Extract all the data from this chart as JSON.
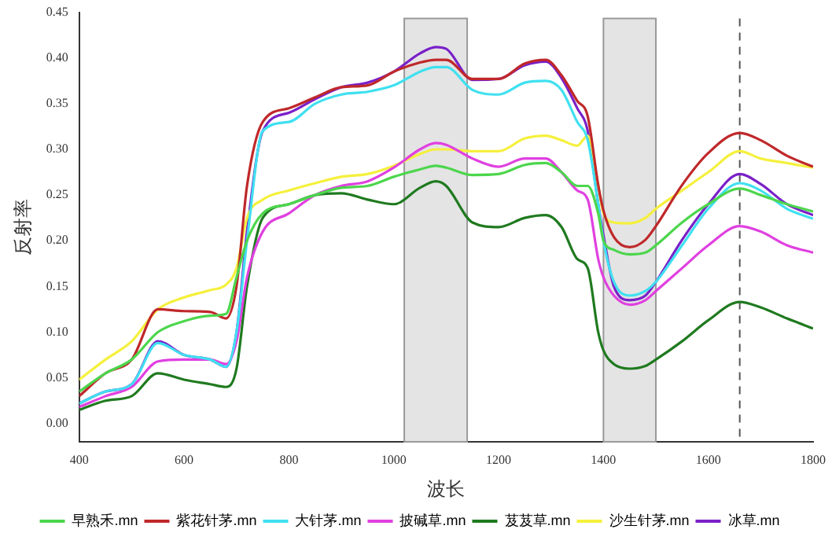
{
  "chart_data": {
    "type": "line",
    "xlabel": "波长",
    "ylabel": "反射率",
    "x": [
      400,
      450,
      500,
      550,
      600,
      650,
      680,
      700,
      720,
      750,
      800,
      850,
      900,
      950,
      1000,
      1050,
      1080,
      1100,
      1150,
      1200,
      1250,
      1290,
      1320,
      1350,
      1370,
      1390,
      1400,
      1420,
      1450,
      1480,
      1500,
      1550,
      1600,
      1660,
      1700,
      1750,
      1800
    ],
    "series": [
      {
        "name": "早熟禾.mn",
        "color": "#4cd64c",
        "values": [
          0.035,
          0.055,
          0.07,
          0.1,
          0.112,
          0.118,
          0.12,
          0.16,
          0.2,
          0.23,
          0.24,
          0.25,
          0.258,
          0.26,
          0.27,
          0.278,
          0.282,
          0.28,
          0.272,
          0.273,
          0.283,
          0.285,
          0.275,
          0.26,
          0.26,
          0.23,
          0.2,
          0.19,
          0.185,
          0.187,
          0.195,
          0.22,
          0.24,
          0.257,
          0.25,
          0.24,
          0.232
        ]
      },
      {
        "name": "紫花针茅.mn",
        "color": "#c0282a",
        "values": [
          0.03,
          0.055,
          0.07,
          0.125,
          0.123,
          0.122,
          0.115,
          0.15,
          0.26,
          0.33,
          0.345,
          0.357,
          0.368,
          0.37,
          0.385,
          0.395,
          0.398,
          0.398,
          0.377,
          0.377,
          0.394,
          0.398,
          0.381,
          0.353,
          0.336,
          0.261,
          0.233,
          0.204,
          0.193,
          0.201,
          0.216,
          0.261,
          0.296,
          0.318,
          0.31,
          0.293,
          0.281
        ]
      },
      {
        "name": "大针茅.mn",
        "color": "#40e0f0",
        "values": [
          0.022,
          0.035,
          0.043,
          0.088,
          0.075,
          0.07,
          0.062,
          0.1,
          0.2,
          0.32,
          0.33,
          0.35,
          0.36,
          0.363,
          0.37,
          0.385,
          0.39,
          0.39,
          0.365,
          0.36,
          0.373,
          0.375,
          0.365,
          0.33,
          0.31,
          0.24,
          0.2,
          0.155,
          0.14,
          0.145,
          0.155,
          0.195,
          0.235,
          0.263,
          0.255,
          0.235,
          0.224
        ]
      },
      {
        "name": "披碱草.mn",
        "color": "#e040e0",
        "values": [
          0.018,
          0.03,
          0.04,
          0.068,
          0.07,
          0.07,
          0.065,
          0.09,
          0.16,
          0.21,
          0.23,
          0.25,
          0.26,
          0.265,
          0.28,
          0.3,
          0.307,
          0.305,
          0.29,
          0.281,
          0.29,
          0.29,
          0.275,
          0.255,
          0.245,
          0.18,
          0.16,
          0.14,
          0.13,
          0.135,
          0.145,
          0.17,
          0.195,
          0.216,
          0.21,
          0.195,
          0.187
        ]
      },
      {
        "name": "芨芨草.mn",
        "color": "#1f7a1f",
        "values": [
          0.015,
          0.025,
          0.03,
          0.055,
          0.048,
          0.043,
          0.04,
          0.06,
          0.15,
          0.225,
          0.24,
          0.25,
          0.252,
          0.245,
          0.24,
          0.258,
          0.265,
          0.26,
          0.22,
          0.215,
          0.225,
          0.228,
          0.215,
          0.18,
          0.17,
          0.1,
          0.08,
          0.065,
          0.06,
          0.063,
          0.07,
          0.09,
          0.113,
          0.133,
          0.127,
          0.115,
          0.104
        ]
      },
      {
        "name": "沙生针茅.mn",
        "color": "#f5f03c",
        "values": [
          0.048,
          0.07,
          0.09,
          0.125,
          0.138,
          0.146,
          0.152,
          0.17,
          0.225,
          0.245,
          0.255,
          0.263,
          0.27,
          0.273,
          0.282,
          0.295,
          0.3,
          0.3,
          0.298,
          0.298,
          0.312,
          0.315,
          0.31,
          0.304,
          0.315,
          0.26,
          0.23,
          0.22,
          0.219,
          0.225,
          0.235,
          0.255,
          0.275,
          0.298,
          0.29,
          0.285,
          0.28
        ]
      },
      {
        "name": "冰草.mn",
        "color": "#7a20c8",
        "values": [
          0.022,
          0.035,
          0.043,
          0.09,
          0.075,
          0.07,
          0.062,
          0.1,
          0.21,
          0.32,
          0.34,
          0.355,
          0.368,
          0.373,
          0.385,
          0.405,
          0.412,
          0.41,
          0.376,
          0.377,
          0.392,
          0.396,
          0.378,
          0.345,
          0.32,
          0.24,
          0.206,
          0.15,
          0.135,
          0.14,
          0.155,
          0.201,
          0.24,
          0.273,
          0.262,
          0.24,
          0.228
        ]
      }
    ],
    "xlim": [
      400,
      1800
    ],
    "xticks": [
      400,
      600,
      800,
      1000,
      1200,
      1400,
      1600,
      1800
    ],
    "ylim": [
      -0.02,
      0.45
    ],
    "yticks": [
      {
        "value": 0,
        "label": "0.00"
      },
      {
        "value": 0.05,
        "label": "0.05"
      },
      {
        "value": 0.1,
        "label": "0.10"
      },
      {
        "value": 0.15,
        "label": "0.15"
      },
      {
        "value": 0.2,
        "label": "0.20"
      },
      {
        "value": 0.25,
        "label": "0.25"
      },
      {
        "value": 0.3,
        "label": "0.30"
      },
      {
        "value": 0.35,
        "label": "0.35"
      },
      {
        "value": 0.4,
        "label": "0.40"
      },
      {
        "value": 0.45,
        "label": "0.45"
      }
    ],
    "bands": [
      {
        "axis": "x",
        "from": 1020,
        "to": 1140,
        "color": "#999999"
      },
      {
        "axis": "x",
        "from": 1400,
        "to": 1500,
        "color": "#999999"
      }
    ],
    "ref_lines": [
      {
        "axis": "x",
        "value": 1660,
        "color": "#555555",
        "line_style": "dashed"
      }
    ],
    "grid": false,
    "legend": "bottom",
    "marker": "none",
    "line_style": "solid"
  }
}
